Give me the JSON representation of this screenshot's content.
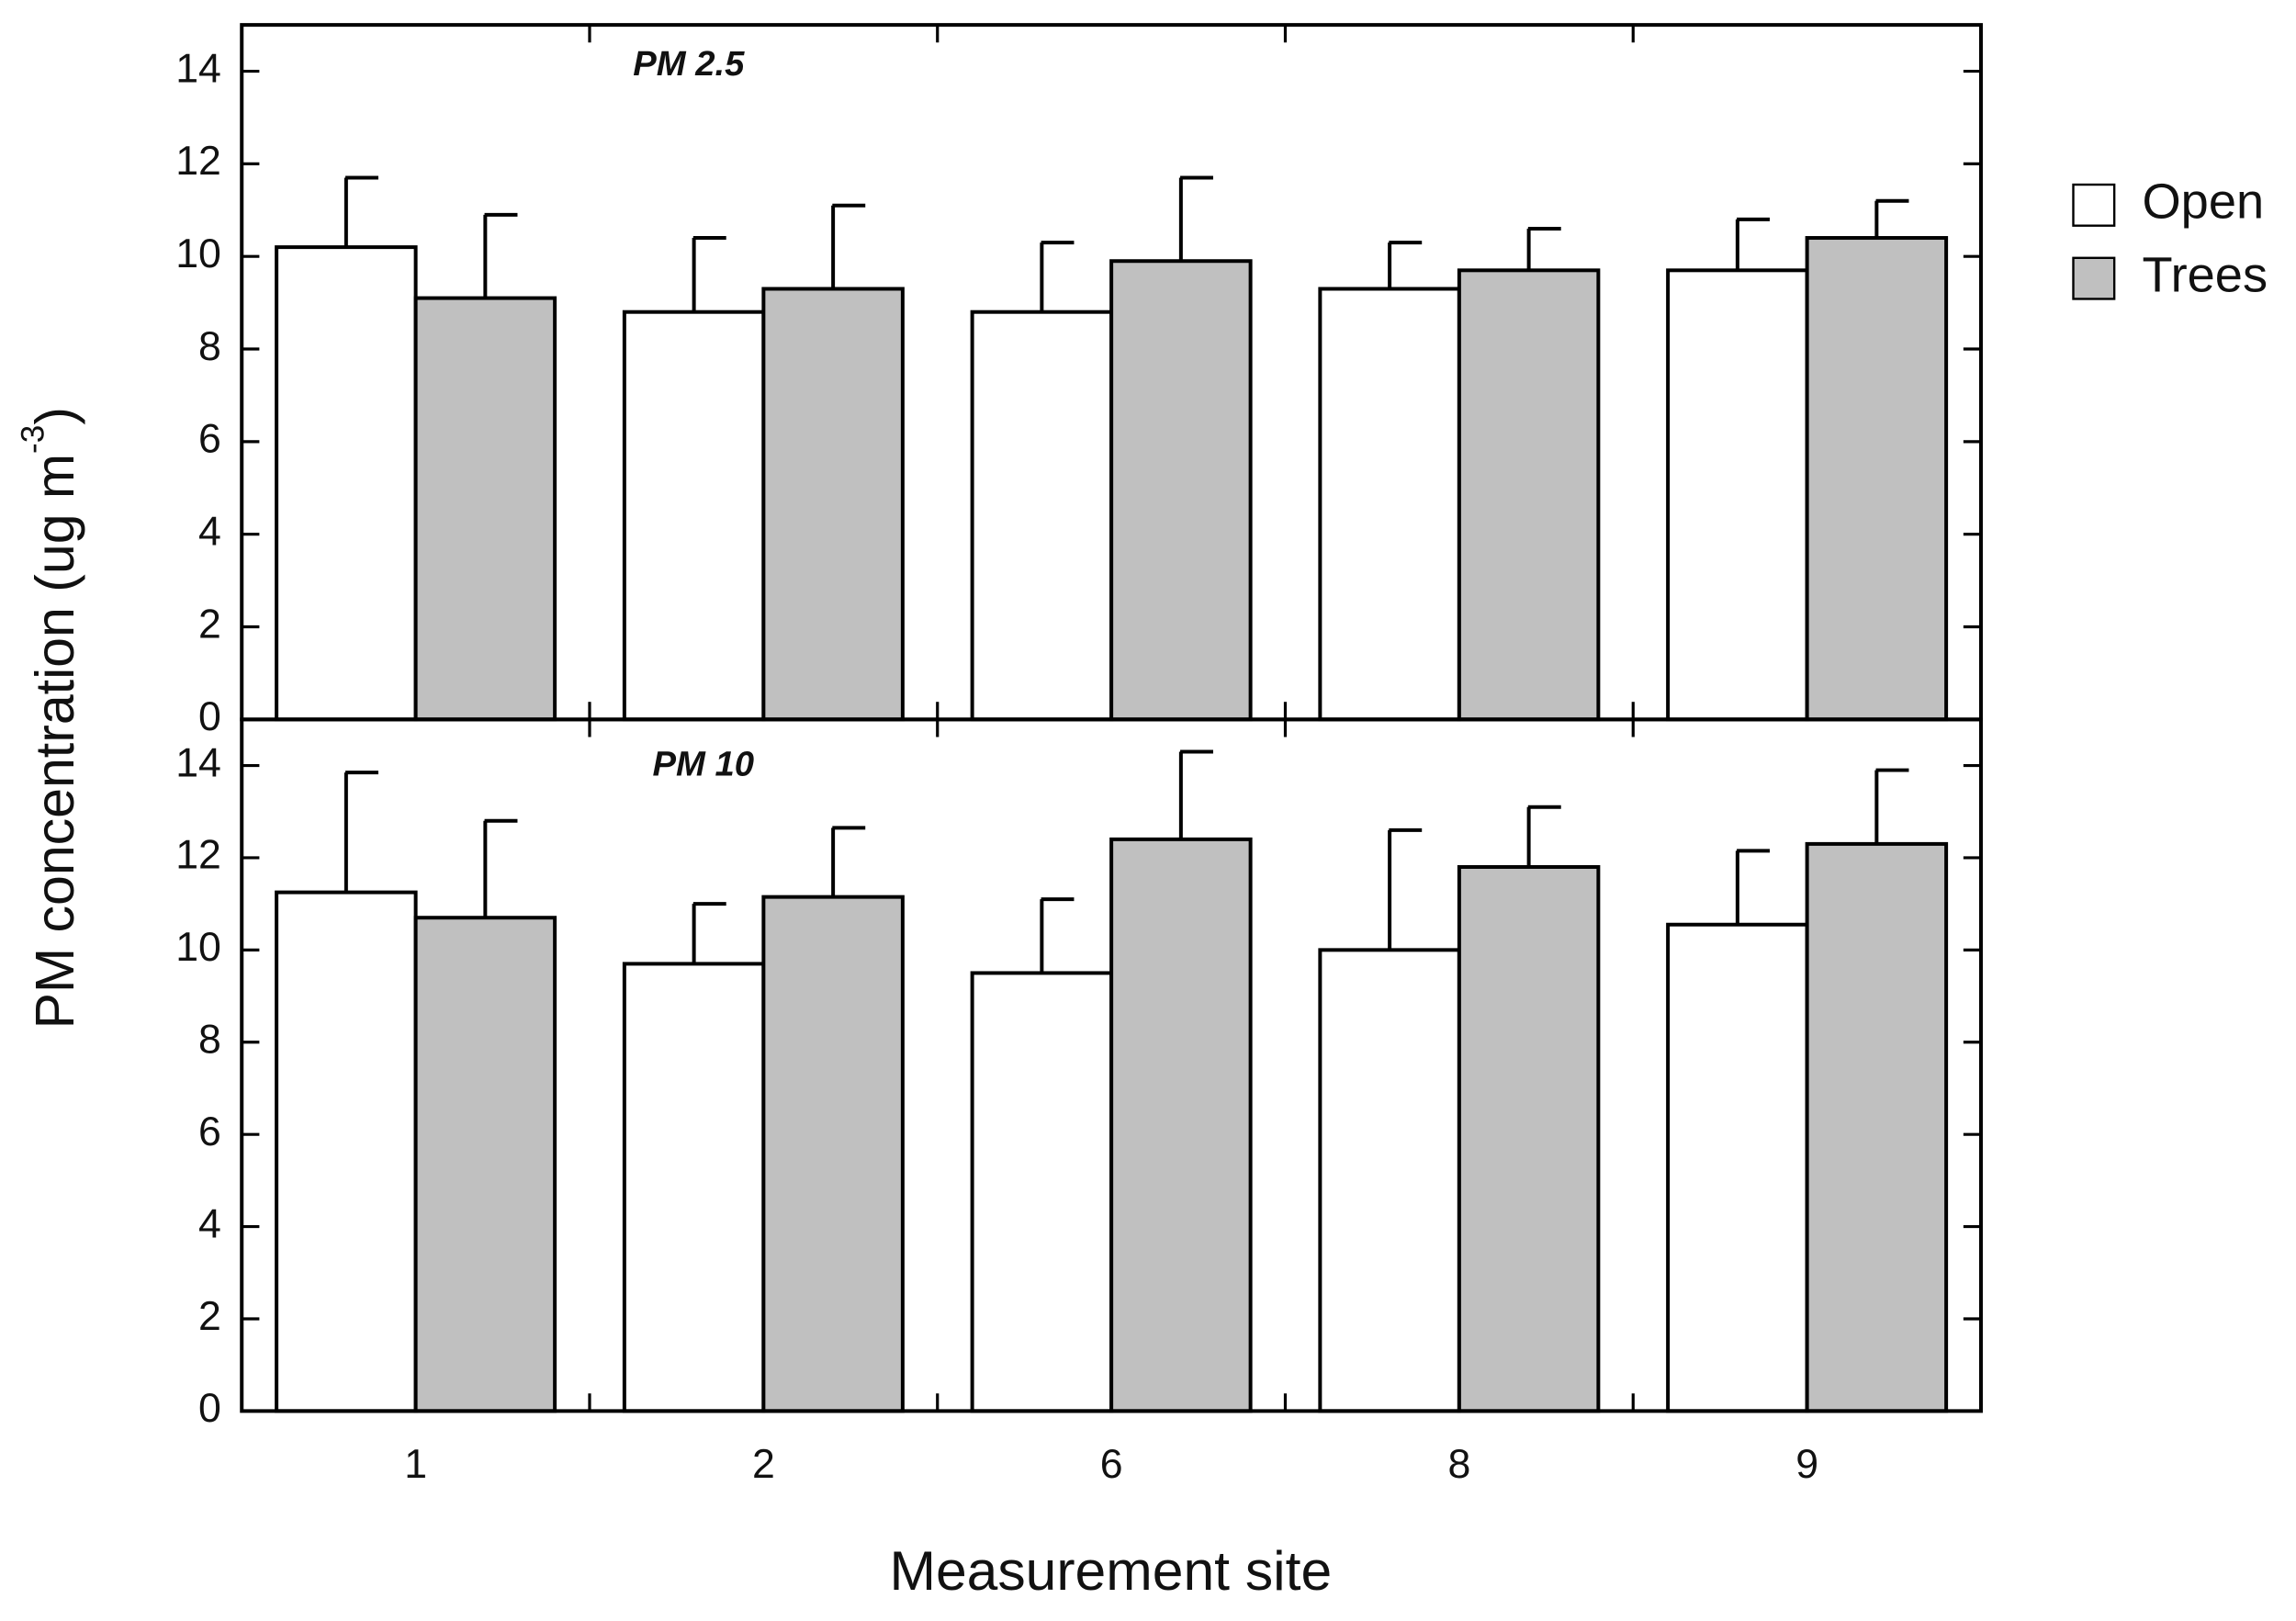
{
  "chart_data": [
    {
      "type": "bar",
      "title": "PM 2.5",
      "ylabel_parts": [
        "PM concentration (ug m",
        "-3",
        ")"
      ],
      "ylim": [
        0,
        15
      ],
      "yticks": [
        0,
        2,
        4,
        6,
        8,
        10,
        12,
        14
      ],
      "series": [
        {
          "name": "Open",
          "color": "#ffffff",
          "values": [
            10.2,
            8.8,
            8.8,
            9.3,
            9.7
          ],
          "errors": [
            1.5,
            1.6,
            1.5,
            1.0,
            1.1
          ]
        },
        {
          "name": "Trees",
          "color": "#c0c0c0",
          "values": [
            9.1,
            9.3,
            9.9,
            9.7,
            10.4
          ],
          "errors": [
            1.8,
            1.8,
            1.8,
            0.9,
            0.8
          ]
        }
      ]
    },
    {
      "type": "bar",
      "title": "PM 10",
      "xlabel": "Measurement site",
      "categories": [
        "1",
        "2",
        "6",
        "8",
        "9"
      ],
      "ylim": [
        0,
        15
      ],
      "yticks": [
        0,
        2,
        4,
        6,
        8,
        10,
        12,
        14
      ],
      "series": [
        {
          "name": "Open",
          "color": "#ffffff",
          "values": [
            11.25,
            9.7,
            9.5,
            10.0,
            10.55
          ],
          "errors": [
            2.6,
            1.3,
            1.6,
            2.6,
            1.6
          ]
        },
        {
          "name": "Trees",
          "color": "#c0c0c0",
          "values": [
            10.7,
            11.15,
            12.4,
            11.8,
            12.3
          ],
          "errors": [
            2.1,
            1.5,
            1.9,
            1.3,
            1.6
          ]
        }
      ]
    }
  ]
}
